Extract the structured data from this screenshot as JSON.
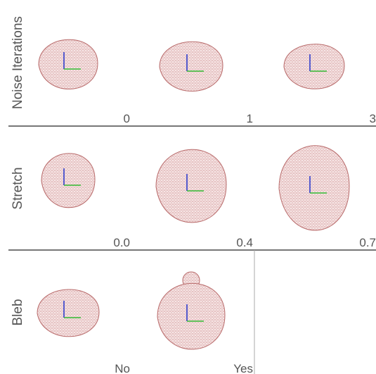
{
  "rows": [
    {
      "label": "Noise Iterations",
      "panels": [
        "0",
        "1",
        "3"
      ]
    },
    {
      "label": "Stretch",
      "panels": [
        "0.0",
        "0.4",
        "0.7"
      ]
    },
    {
      "label": "Bleb",
      "panels": [
        "No",
        "Yes"
      ]
    }
  ]
}
